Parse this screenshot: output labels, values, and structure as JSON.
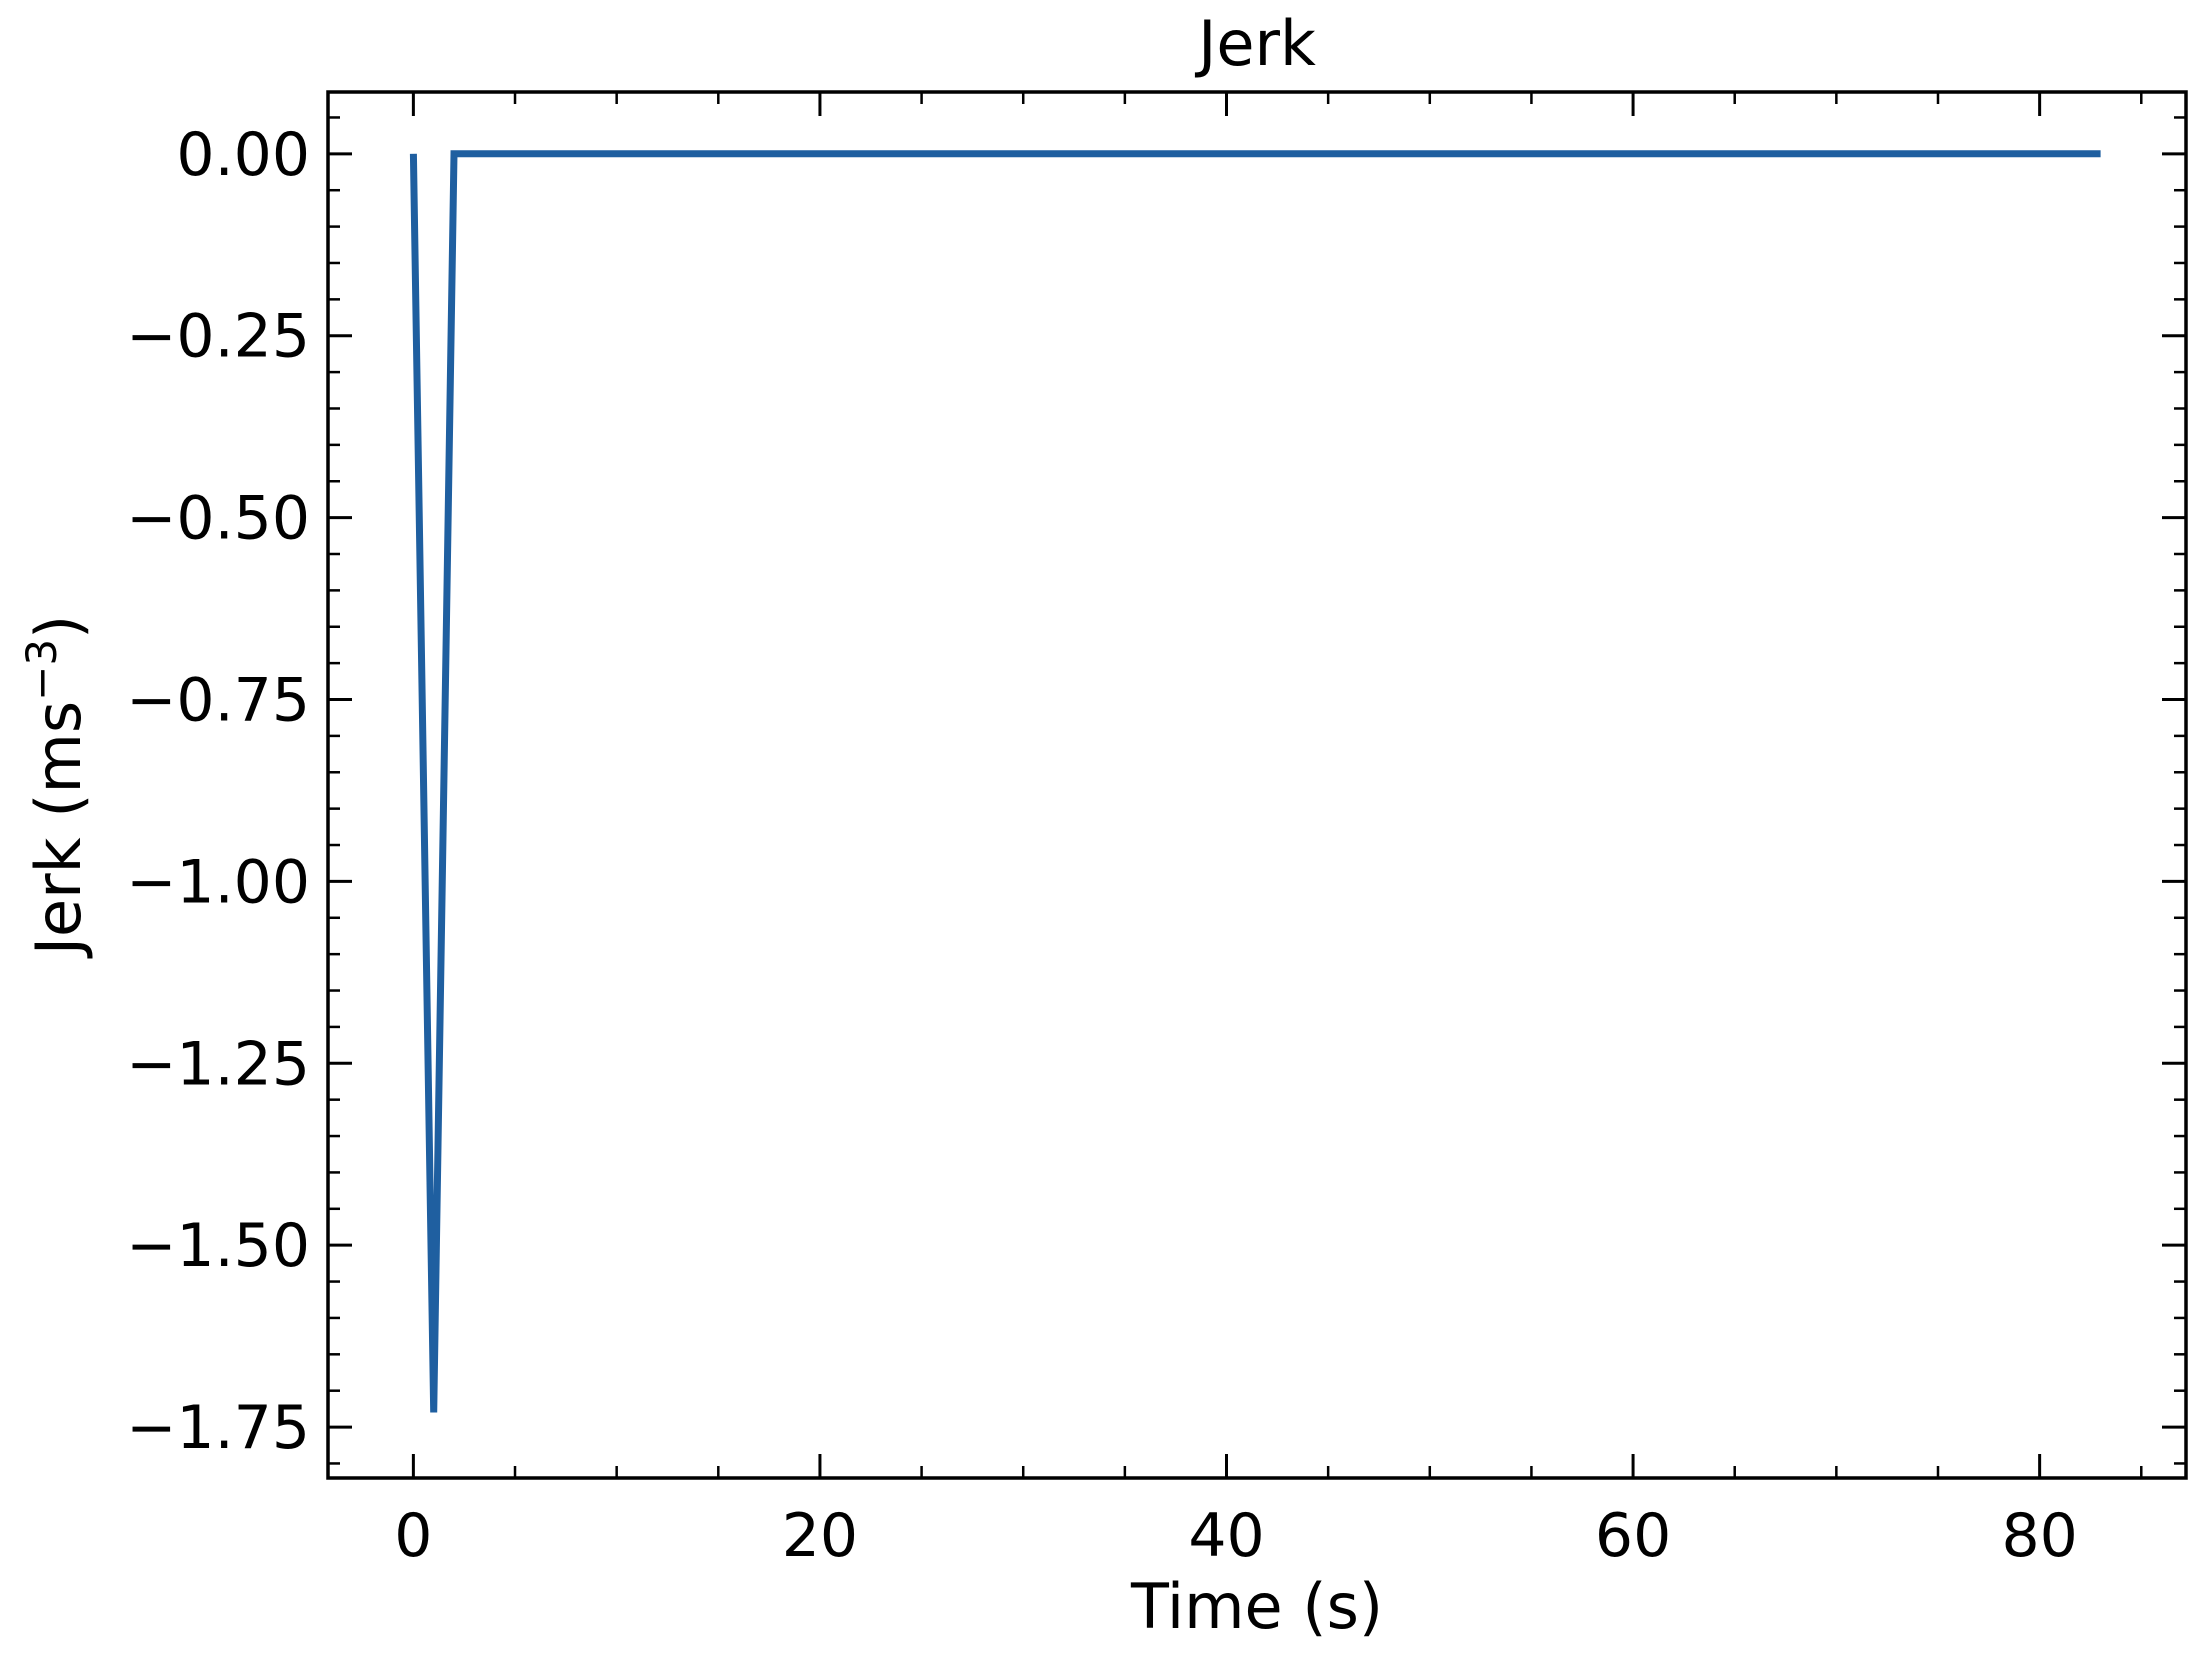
{
  "chart_data": {
    "type": "line",
    "title": "Jerk",
    "xlabel": "Time (s)",
    "ylabel_main": "Jerk (ms",
    "ylabel_sup": "−3",
    "ylabel_close": ")",
    "xlim": [
      -4.2,
      87.2
    ],
    "ylim": [
      -1.82,
      0.085
    ],
    "x_ticks": [
      0,
      20,
      40,
      60,
      80
    ],
    "x_tick_labels": [
      "0",
      "20",
      "40",
      "60",
      "80"
    ],
    "x_minor_step": 5,
    "y_ticks": [
      0.0,
      -0.25,
      -0.5,
      -0.75,
      -1.0,
      -1.25,
      -1.5,
      -1.75
    ],
    "y_tick_labels": [
      "0.00",
      "−0.25",
      "−0.50",
      "−0.75",
      "−1.00",
      "−1.25",
      "−1.50",
      "−1.75"
    ],
    "y_minor_step": 0.05,
    "grid": false,
    "series": [
      {
        "color": "#1f5fa0",
        "x": [
          0,
          1,
          2,
          83
        ],
        "y": [
          0.0,
          -1.73,
          0.0,
          0.0
        ]
      }
    ]
  }
}
